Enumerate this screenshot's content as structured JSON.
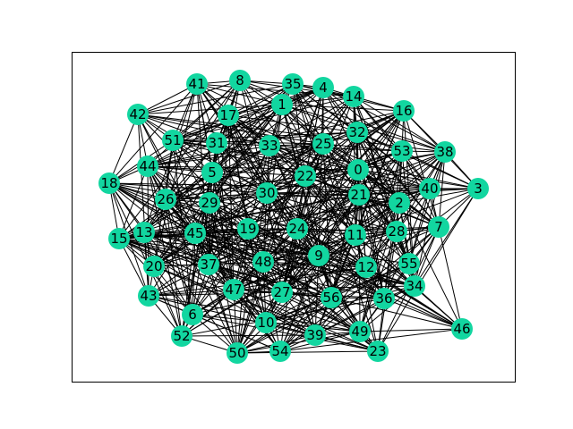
{
  "figure": {
    "node_color": "#12d6a0",
    "edge_color": "#000000",
    "background": "#ffffff"
  },
  "nodes": [
    "0",
    "1",
    "2",
    "3",
    "4",
    "5",
    "6",
    "7",
    "8",
    "9",
    "10",
    "11",
    "12",
    "13",
    "14",
    "15",
    "16",
    "17",
    "18",
    "19",
    "20",
    "21",
    "22",
    "23",
    "24",
    "25",
    "26",
    "27",
    "28",
    "29",
    "30",
    "31",
    "32",
    "33",
    "34",
    "35",
    "36",
    "37",
    "38",
    "39",
    "40",
    "41",
    "42",
    "43",
    "44",
    "45",
    "46",
    "47",
    "48",
    "49",
    "50",
    "51",
    "52",
    "53",
    "54",
    "55",
    "56"
  ]
}
